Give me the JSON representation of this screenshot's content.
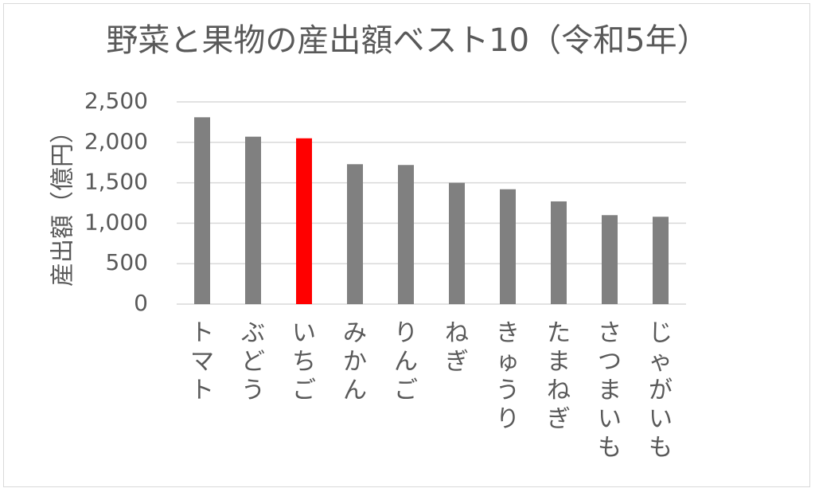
{
  "chart_data": {
    "type": "bar",
    "title": "野菜と果物の産出額ベスト10（令和5年）",
    "ylabel": "産出額（億円）",
    "xlabel": "",
    "categories": [
      "トマト",
      "ぶどう",
      "いちご",
      "みかん",
      "りんご",
      "ねぎ",
      "きゅうり",
      "たまねぎ",
      "さつまいも",
      "じゃがいも"
    ],
    "values": [
      2310,
      2070,
      2050,
      1730,
      1720,
      1500,
      1420,
      1270,
      1100,
      1080
    ],
    "ylim": [
      0,
      2500
    ],
    "yticks": [
      0,
      500,
      1000,
      1500,
      2000,
      2500
    ],
    "ytick_labels": [
      "0",
      "500",
      "1,000",
      "1,500",
      "2,000",
      "2,500"
    ],
    "grid": true,
    "colors": {
      "default_bar": "#808080",
      "highlight_bar": "#ff0000",
      "gridline": "#d9d9d9",
      "text": "#595959"
    },
    "highlight_index": 2
  }
}
